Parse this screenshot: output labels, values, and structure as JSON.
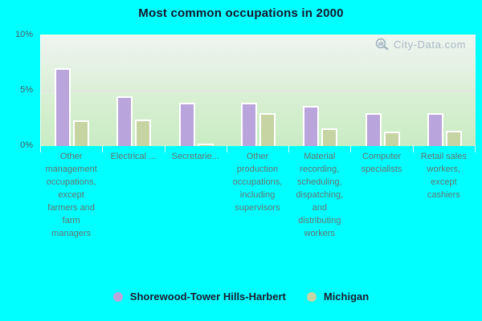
{
  "title": "Most common occupations in 2000",
  "watermark": "City-Data.com",
  "colors": {
    "canvas_background": "#00ffff",
    "title_text": "#16162e",
    "axis_text": "#4f5a64",
    "category_text": "#697270",
    "legend_text": "#1c1c30",
    "watermark_text": "#a9bac3",
    "plot_gradient_top": "#eef4f1",
    "plot_gradient_bottom": "#c8ecc3",
    "gridline": "#e9dde6",
    "bar_border": "#ffffff"
  },
  "chart_data": {
    "type": "bar",
    "title": "Most common occupations in 2000",
    "categories": [
      "Other management occupations, except farmers and farm managers",
      "Electrical ...",
      "Secretarie...",
      "Other production occupations, including supervisors",
      "Material recording, scheduling, dispatching, and distributing workers",
      "Computer specialists",
      "Retail sales workers, except cashiers"
    ],
    "series": [
      {
        "name": "Shorewood-Tower Hills-Harbert",
        "color": "#b9a5dc",
        "values": [
          7.0,
          4.5,
          3.9,
          3.9,
          3.6,
          3.0,
          3.0
        ]
      },
      {
        "name": "Michigan",
        "color": "#c5d4a2",
        "values": [
          2.3,
          2.4,
          0.2,
          3.0,
          1.6,
          1.3,
          1.4
        ]
      }
    ],
    "ylabel": "",
    "xlabel": "",
    "ylim": [
      0,
      10
    ],
    "yticks": [
      {
        "label": "10%",
        "value": 10
      },
      {
        "label": "5%",
        "value": 5
      },
      {
        "label": "0%",
        "value": 0
      }
    ],
    "gridlines": [
      5
    ],
    "grid": "single horizontal gridline at 5%",
    "legend_position": "bottom",
    "values_unit": "%"
  }
}
